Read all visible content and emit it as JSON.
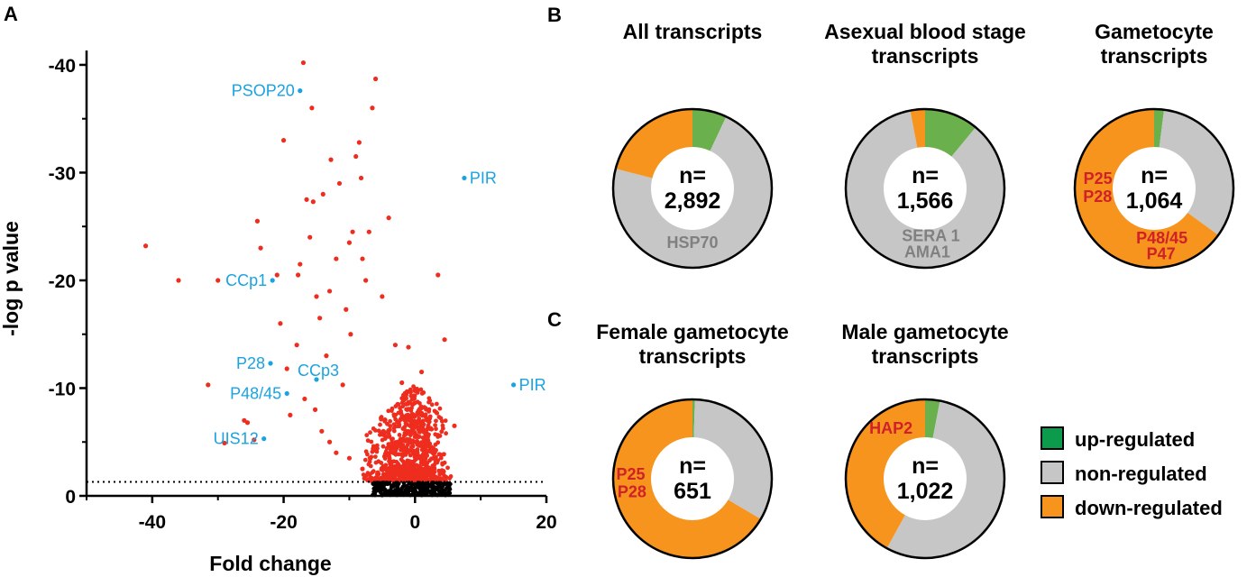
{
  "colors": {
    "sig": "#ee2d1f",
    "nonsig": "#000000",
    "gene": "#1aa3e0",
    "up": "#6ab04c",
    "non": "#c6c6c6",
    "down": "#f7941d",
    "legend_up": "#0c9a4c",
    "annot_red": "#d0202a",
    "annot_gray": "#808080"
  },
  "panels": {
    "a": "A",
    "b": "B",
    "c": "C"
  },
  "chart_data": [
    {
      "type": "scatter",
      "id": "volcano",
      "xlabel": "Fold change",
      "ylabel": "-log p value",
      "xlim": [
        -50,
        20
      ],
      "ylim": [
        0,
        -41
      ],
      "xticks": [
        -40,
        -20,
        0,
        20
      ],
      "yticks": [
        0,
        -10,
        -20,
        -30,
        -40
      ],
      "threshold_y": -1.3,
      "significant": [
        [
          -41,
          -23.2
        ],
        [
          -36,
          -20
        ],
        [
          -31.5,
          -10.3
        ],
        [
          -30,
          -20
        ],
        [
          -29,
          -4.9
        ],
        [
          -26,
          -7
        ],
        [
          -25.5,
          -6.8
        ],
        [
          -24.5,
          -5.2
        ],
        [
          -24,
          -25.5
        ],
        [
          -23.5,
          -23
        ],
        [
          -21,
          -20.5
        ],
        [
          -20.5,
          -16
        ],
        [
          -20,
          -33
        ],
        [
          -19.5,
          -11.8
        ],
        [
          -19,
          -7.5
        ],
        [
          -18,
          -14
        ],
        [
          -17.5,
          -21.5
        ],
        [
          -17,
          -40.2
        ],
        [
          -16.5,
          -27.5
        ],
        [
          -16,
          -24
        ],
        [
          -15.7,
          -36
        ],
        [
          -15.5,
          -27.3
        ],
        [
          -15,
          -18.5
        ],
        [
          -14.5,
          -16.5
        ],
        [
          -14,
          -28
        ],
        [
          -13.5,
          -13
        ],
        [
          -13,
          -19
        ],
        [
          -12.8,
          -31.2
        ],
        [
          -12,
          -22
        ],
        [
          -11.5,
          -29
        ],
        [
          -11,
          -10.3
        ],
        [
          -10.5,
          -17.3
        ],
        [
          -10,
          -23.5
        ],
        [
          -9.8,
          -15
        ],
        [
          -9.5,
          -24.5
        ],
        [
          -9,
          -31.5
        ],
        [
          -8.5,
          -32.8
        ],
        [
          -8.2,
          -29.5
        ],
        [
          -8,
          -22
        ],
        [
          -7.5,
          -20
        ],
        [
          -7,
          -24.5
        ],
        [
          -6.5,
          -36
        ],
        [
          -6,
          -38.7
        ],
        [
          -5,
          -18.5
        ],
        [
          -4,
          -25.8
        ],
        [
          -3,
          -14
        ],
        [
          -2,
          -10.5
        ],
        [
          -1,
          -13.8
        ],
        [
          1,
          -11.5
        ],
        [
          3.5,
          -20.5
        ],
        [
          4.5,
          -14.5
        ],
        [
          6,
          -6.5
        ],
        [
          -17.8,
          -20.5
        ],
        [
          -16.8,
          -9
        ],
        [
          -15.2,
          -8
        ],
        [
          -14.2,
          -6
        ],
        [
          -13,
          -5
        ],
        [
          -12,
          -4
        ],
        [
          -10,
          -3.5
        ],
        [
          -8,
          -2.5
        ]
      ],
      "genes": [
        {
          "name": "PSOP20",
          "x": -17.5,
          "y": -37.6,
          "label_side": "left"
        },
        {
          "name": "PIR",
          "x": 7.5,
          "y": -29.5,
          "label_side": "right"
        },
        {
          "name": "CCp1",
          "x": -21.7,
          "y": -20,
          "label_side": "left"
        },
        {
          "name": "P28",
          "x": -22,
          "y": -12.3,
          "label_side": "left"
        },
        {
          "name": "CCp3",
          "x": -15,
          "y": -10.8,
          "label_side": "above"
        },
        {
          "name": "P48/45",
          "x": -19.5,
          "y": -9.5,
          "label_side": "left"
        },
        {
          "name": "PIR",
          "x": 15,
          "y": -10.3,
          "label_side": "right"
        },
        {
          "name": "UIS12",
          "x": -23,
          "y": -5.3,
          "label_side": "left"
        }
      ]
    },
    {
      "type": "pie",
      "id": "all",
      "title": [
        "All transcripts"
      ],
      "n": "2,892",
      "up": 0.07,
      "non": 0.72,
      "down": 0.21,
      "annotations": [
        {
          "text": "HSP70",
          "color": "gray",
          "r": 0.68,
          "angle": 180
        }
      ]
    },
    {
      "type": "pie",
      "id": "asexual",
      "title": [
        "Asexual blood stage",
        "transcripts"
      ],
      "n": "1,566",
      "up": 0.11,
      "non": 0.86,
      "down": 0.03,
      "annotations": [
        {
          "text": "SERA 1",
          "color": "gray",
          "r": 0.6,
          "angle": 173
        },
        {
          "text": "AMA1",
          "color": "gray",
          "r": 0.8,
          "angle": 178
        }
      ]
    },
    {
      "type": "pie",
      "id": "gametocyte",
      "title": [
        "Gametocyte",
        "transcripts"
      ],
      "n": "1,064",
      "up": 0.02,
      "non": 0.33,
      "down": 0.65,
      "annotations": [
        {
          "text": "P25",
          "color": "red",
          "r": 0.72,
          "angle": 280
        },
        {
          "text": "P28",
          "color": "red",
          "r": 0.72,
          "angle": 262
        },
        {
          "text": "P48/45",
          "color": "red",
          "r": 0.63,
          "angle": 171
        },
        {
          "text": "P47",
          "color": "red",
          "r": 0.83,
          "angle": 174
        }
      ]
    },
    {
      "type": "pie",
      "id": "female",
      "title": [
        "Female gametocyte",
        "transcripts"
      ],
      "n": "651",
      "up": 0.005,
      "non": 0.33,
      "down": 0.665,
      "annotations": [
        {
          "text": "P25",
          "color": "red",
          "r": 0.78,
          "angle": 274
        },
        {
          "text": "P28",
          "color": "red",
          "r": 0.78,
          "angle": 258
        }
      ]
    },
    {
      "type": "pie",
      "id": "male",
      "title": [
        "Male gametocyte",
        "transcripts"
      ],
      "n": "1,022",
      "up": 0.03,
      "non": 0.55,
      "down": 0.42,
      "annotations": [
        {
          "text": "HAP2",
          "color": "red",
          "r": 0.77,
          "angle": 326
        }
      ]
    }
  ],
  "legend": [
    {
      "key": "up",
      "label": "up-regulated"
    },
    {
      "key": "non",
      "label": "non-regulated"
    },
    {
      "key": "down",
      "label": "down-regulated"
    }
  ]
}
